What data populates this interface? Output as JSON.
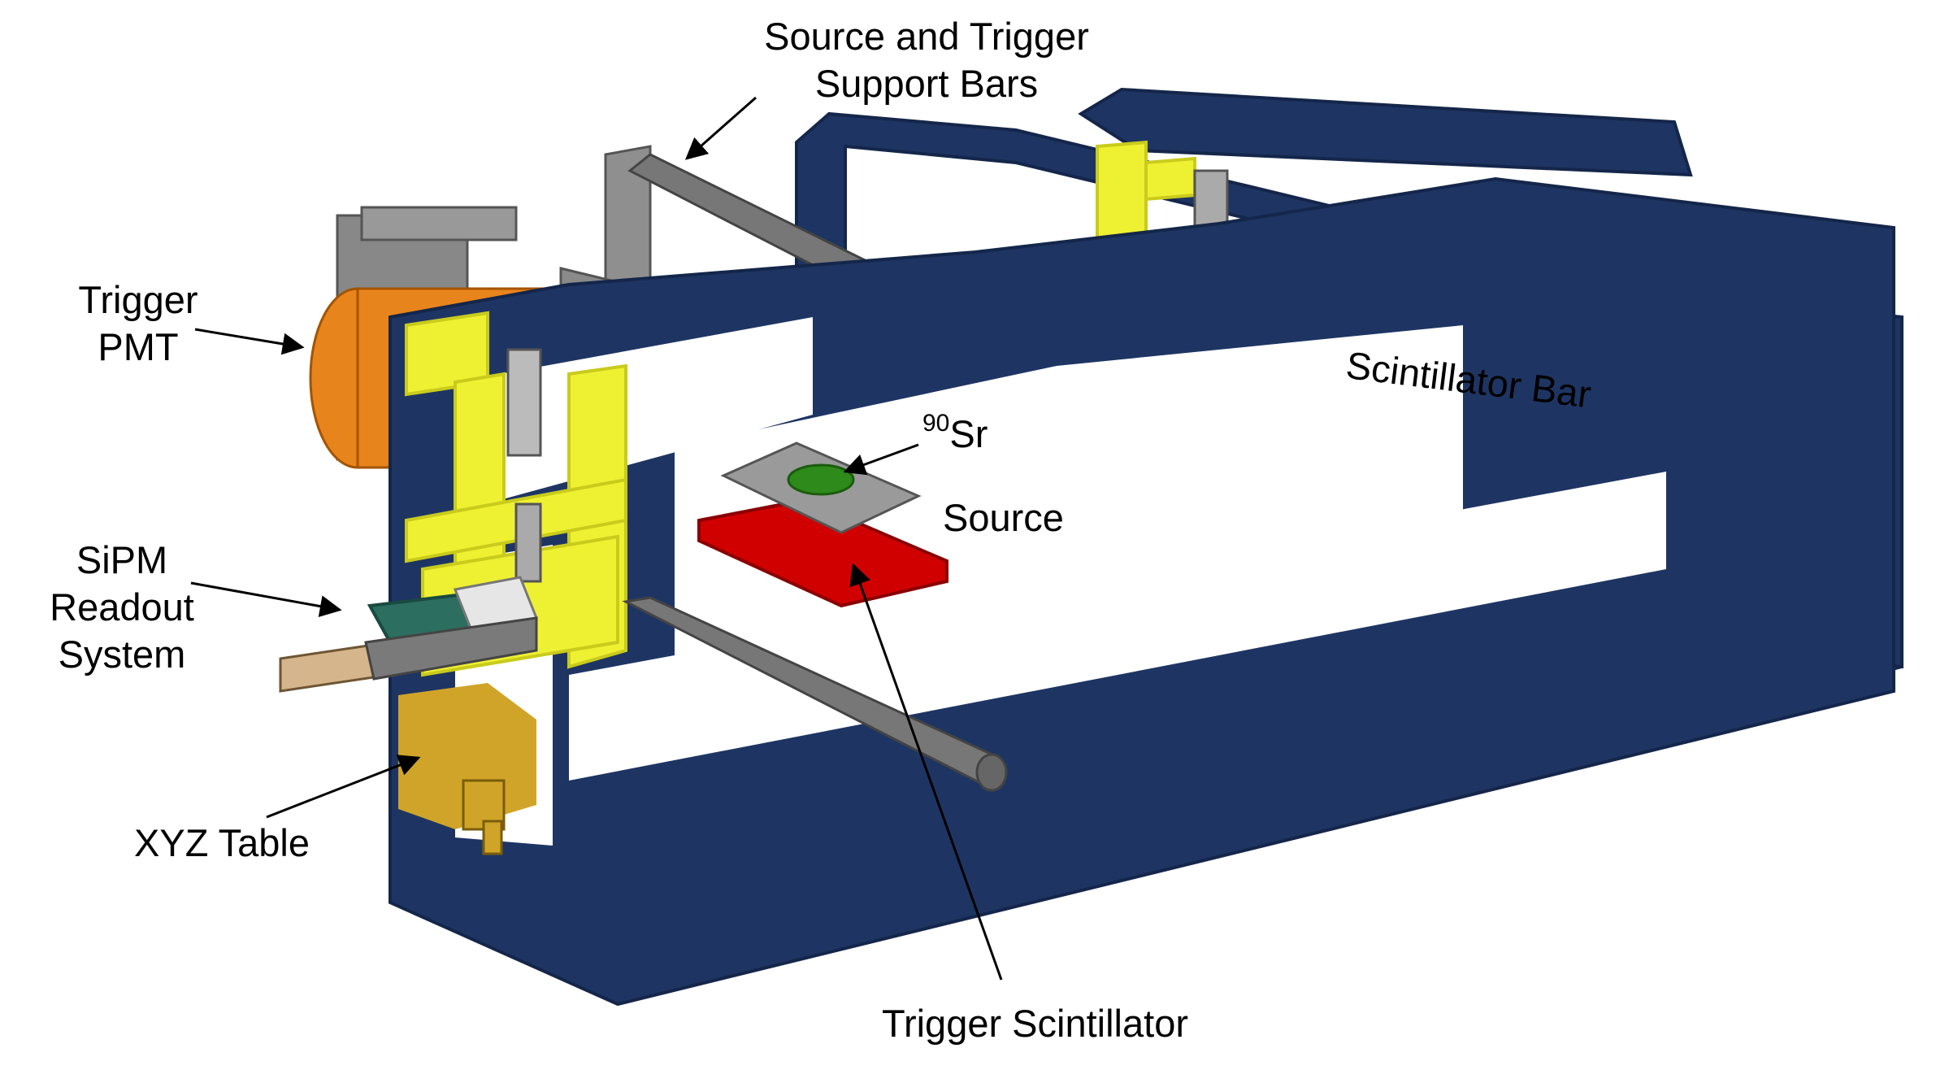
{
  "labels": {
    "support_bars": [
      "Source and Trigger",
      "Support Bars"
    ],
    "trigger_pmt": [
      "Trigger",
      "PMT"
    ],
    "sipm_readout": [
      "SiPM",
      "Readout",
      "System"
    ],
    "xyz_table": "XYZ Table",
    "source_isotope_mass": "90",
    "source_isotope_symbol": "Sr",
    "source": "Source",
    "scintillator_bar": "Scintillator Bar",
    "trigger_scintillator": "Trigger Scintillator"
  },
  "colors": {
    "frame": "#1e3563",
    "frame_edge": "#14264a",
    "bracket": "#eef032",
    "bracket_shade": "#c9cb1c",
    "rod": "#777777",
    "pmt": "#e8841c",
    "scintillator_bar": "#b515d4",
    "trigger_scintillator": "#d10000",
    "source": "#2e8a1a",
    "xyz_table": "#d0a428",
    "readout_board": "#2c6e60"
  }
}
